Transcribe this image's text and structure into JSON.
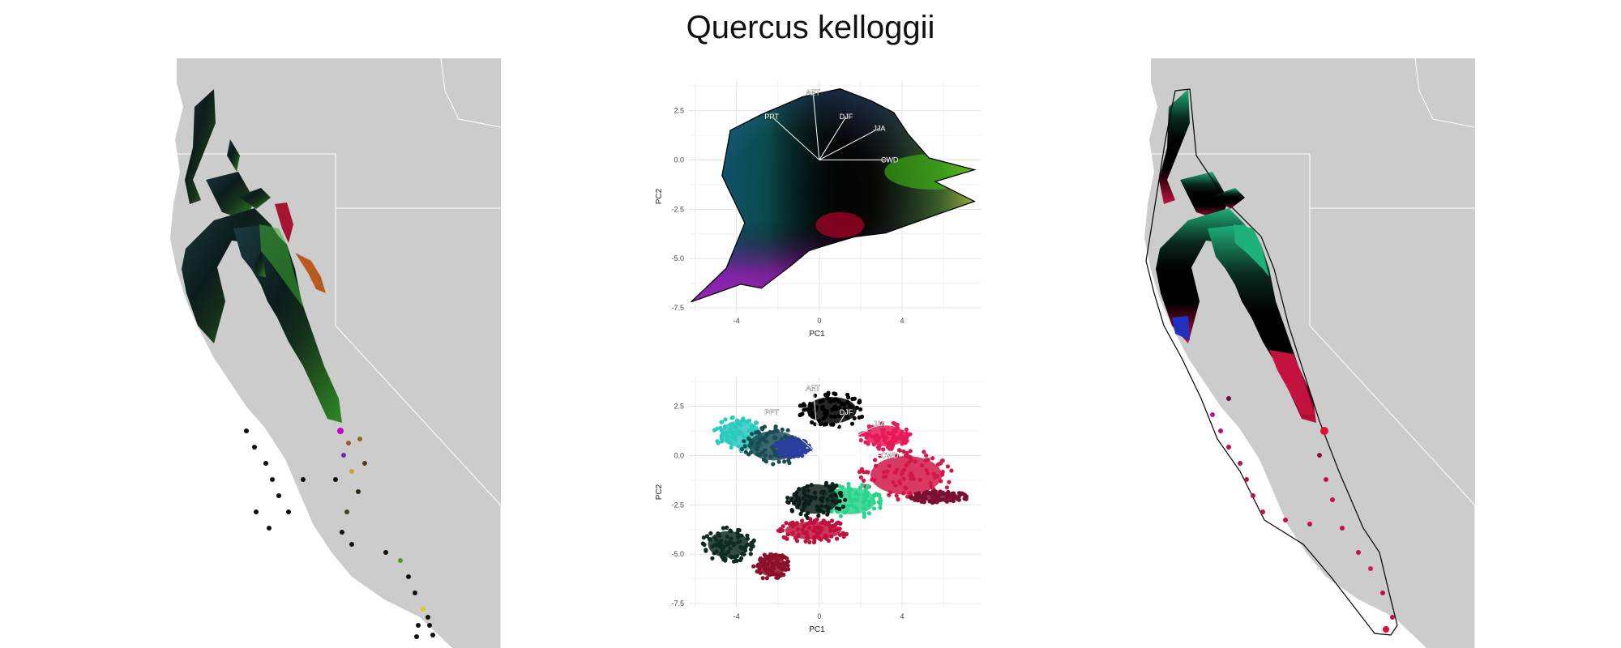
{
  "figure": {
    "title": "Quercus kelloggii"
  },
  "colors": {
    "land": "#cccccc",
    "border": "#ffffff",
    "hull": "#000000",
    "vector": "#ffffff"
  },
  "chart_data": [
    {
      "type": "scatter",
      "panel": "pca-continuous",
      "xlabel": "PC1",
      "ylabel": "PC2",
      "xlim": [
        -6.3,
        7.8
      ],
      "ylim": [
        -7.7,
        4.0
      ],
      "xticks": [
        -4,
        0,
        4
      ],
      "yticks": [
        2.5,
        0.0,
        -2.5,
        -5.0,
        -7.5
      ],
      "xtick_labels": [
        "-4",
        "0",
        "4"
      ],
      "ytick_labels": [
        "2.5",
        "0.0",
        "-2.5",
        "-5.0",
        "-7.5"
      ],
      "grid": true,
      "hull": [
        [
          -6.2,
          -7.2
        ],
        [
          -4.5,
          -5.5
        ],
        [
          -3.6,
          -3.2
        ],
        [
          -4.7,
          -0.8
        ],
        [
          -4.3,
          1.5
        ],
        [
          -2.8,
          2.3
        ],
        [
          -0.8,
          3.2
        ],
        [
          1.0,
          3.6
        ],
        [
          2.5,
          3.0
        ],
        [
          3.6,
          2.4
        ],
        [
          4.3,
          1.3
        ],
        [
          5.3,
          0.1
        ],
        [
          7.5,
          -0.5
        ],
        [
          5.6,
          -1.1
        ],
        [
          7.5,
          -2.1
        ],
        [
          5.6,
          -2.8
        ],
        [
          3.2,
          -3.7
        ],
        [
          1.7,
          -3.9
        ],
        [
          0.4,
          -4.3
        ],
        [
          -0.5,
          -4.6
        ],
        [
          -1.3,
          -5.3
        ],
        [
          -2.8,
          -6.5
        ],
        [
          -3.8,
          -6.3
        ],
        [
          -6.2,
          -7.2
        ]
      ],
      "vectors": [
        {
          "label": "AET",
          "x": -0.3,
          "y": 3.4
        },
        {
          "label": "PPT",
          "x": -2.3,
          "y": 2.2
        },
        {
          "label": "DJF",
          "x": 1.3,
          "y": 2.2
        },
        {
          "label": "JJA",
          "x": 2.9,
          "y": 1.6
        },
        {
          "label": "CWD",
          "x": 3.4,
          "y": 0.0
        }
      ]
    },
    {
      "type": "scatter",
      "panel": "pca-clustered",
      "xlabel": "PC1",
      "ylabel": "PC2",
      "xlim": [
        -6.3,
        7.8
      ],
      "ylim": [
        -7.7,
        4.0
      ],
      "xticks": [
        -4,
        0,
        4
      ],
      "yticks": [
        2.5,
        0.0,
        -2.5,
        -5.0,
        -7.5
      ],
      "xtick_labels": [
        "-4",
        "0",
        "4"
      ],
      "ytick_labels": [
        "2.5",
        "0.0",
        "-2.5",
        "-5.0",
        "-7.5"
      ],
      "grid": true,
      "vectors": [
        {
          "label": "AET",
          "x": -0.3,
          "y": 3.4
        },
        {
          "label": "PPT",
          "x": -2.3,
          "y": 2.2
        },
        {
          "label": "DJF",
          "x": 1.3,
          "y": 2.2
        },
        {
          "label": "JJA",
          "x": 2.9,
          "y": 1.6
        },
        {
          "label": "CWD",
          "x": 3.4,
          "y": 0.0
        }
      ],
      "clusters": [
        {
          "color": "#000000",
          "cx": 0.6,
          "cy": 2.3,
          "rx": 1.6,
          "ry": 0.9
        },
        {
          "color": "#2bc9c0",
          "cx": -3.8,
          "cy": 1.1,
          "rx": 1.3,
          "ry": 0.9
        },
        {
          "color": "#1a4c52",
          "cx": -2.2,
          "cy": 0.5,
          "rx": 1.6,
          "ry": 1.0
        },
        {
          "color": "#2a3fa0",
          "cx": -1.3,
          "cy": 0.4,
          "rx": 0.9,
          "ry": 0.5
        },
        {
          "color": "#d11848",
          "cx": 4.2,
          "cy": -1.0,
          "rx": 2.3,
          "ry": 1.3
        },
        {
          "color": "#e81a58",
          "cx": 3.2,
          "cy": 1.0,
          "rx": 1.3,
          "ry": 0.7
        },
        {
          "color": "#2ad38c",
          "cx": 1.5,
          "cy": -2.3,
          "rx": 1.6,
          "ry": 0.9
        },
        {
          "color": "#0d1f1a",
          "cx": -0.2,
          "cy": -2.2,
          "rx": 1.5,
          "ry": 1.0
        },
        {
          "color": "#c0123e",
          "cx": -0.3,
          "cy": -3.8,
          "rx": 1.8,
          "ry": 0.6
        },
        {
          "color": "#8c0f2c",
          "cx": -2.3,
          "cy": -5.6,
          "rx": 0.9,
          "ry": 0.7
        },
        {
          "color": "#0f2b22",
          "cx": -4.4,
          "cy": -4.5,
          "rx": 1.3,
          "ry": 0.9
        },
        {
          "color": "#7a1030",
          "cx": 5.8,
          "cy": -2.1,
          "rx": 1.4,
          "ry": 0.3
        }
      ]
    }
  ]
}
